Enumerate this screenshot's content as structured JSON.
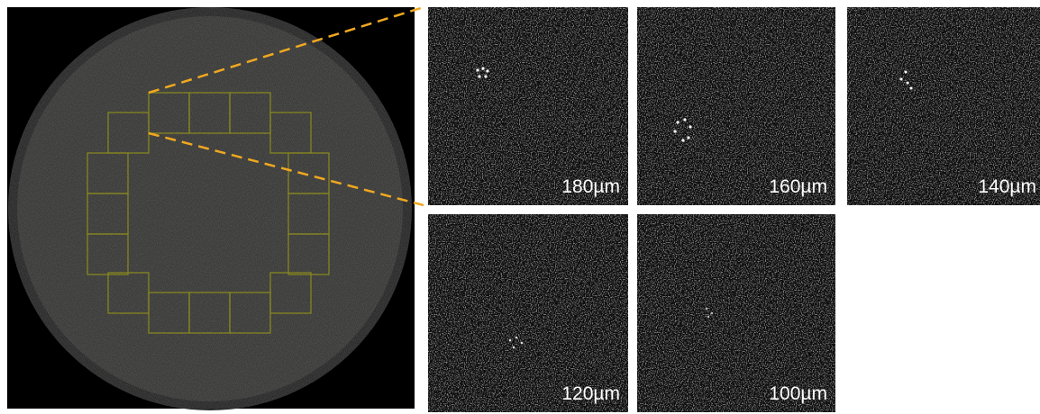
{
  "panels": [
    {
      "label": "180µm"
    },
    {
      "label": "160µm"
    },
    {
      "label": "140µm"
    },
    {
      "label": "120µm"
    },
    {
      "label": "100µm"
    }
  ]
}
